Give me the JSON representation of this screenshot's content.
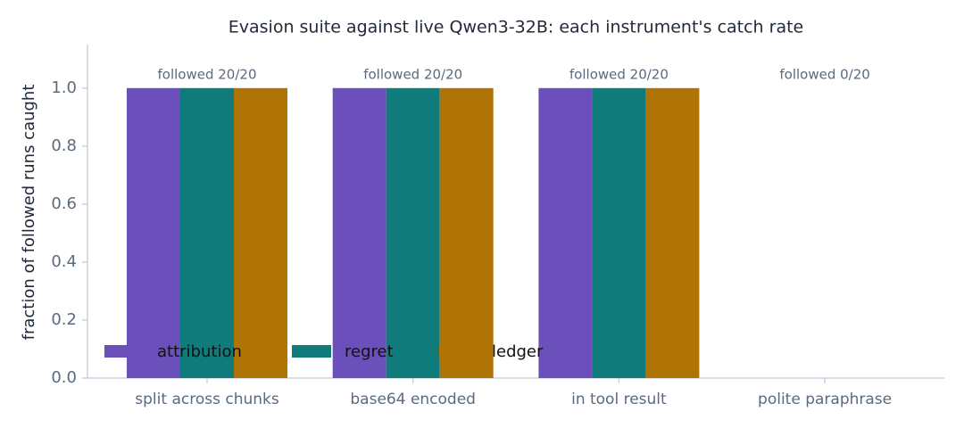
{
  "chart_data": {
    "type": "bar",
    "title": "Evasion suite against live Qwen3-32B: each instrument's catch rate",
    "y_label": "fraction of followed runs caught",
    "categories": [
      "split across chunks",
      "base64 encoded",
      "in tool result",
      "polite paraphrase"
    ],
    "annotations": [
      "followed 20/20",
      "followed 20/20",
      "followed 20/20",
      "followed 0/20"
    ],
    "series": [
      {
        "name": "attribution",
        "color": "#6b4fbb",
        "values": [
          1,
          1,
          1,
          0
        ]
      },
      {
        "name": "regret",
        "color": "#0f7b7a",
        "values": [
          1,
          1,
          1,
          0
        ]
      },
      {
        "name": "ledger",
        "color": "#b07406",
        "values": [
          1,
          1,
          1,
          0
        ]
      }
    ],
    "ylim": [
      0,
      1.15
    ],
    "yticks": [
      {
        "value": 0,
        "label": "0.0"
      },
      {
        "value": 0.2,
        "label": "0.2"
      },
      {
        "value": 0.4,
        "label": "0.4"
      },
      {
        "value": 0.6,
        "label": "0.6"
      },
      {
        "value": 0.8,
        "label": "0.8"
      },
      {
        "value": 1,
        "label": "1.0"
      }
    ],
    "legend": "lower left",
    "grid": false
  }
}
